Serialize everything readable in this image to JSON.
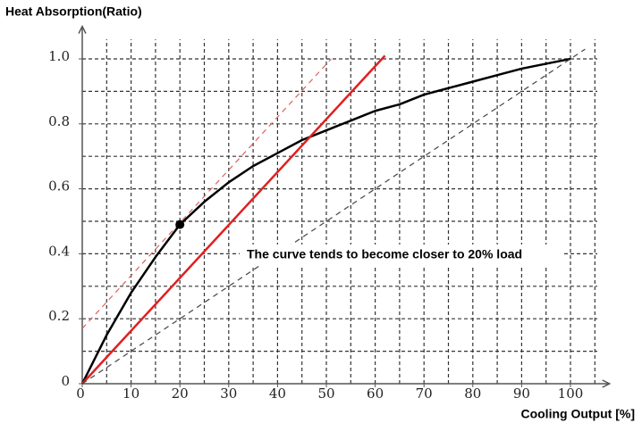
{
  "chart_data": {
    "type": "line",
    "y_label": "Heat Absorption(Ratio)",
    "x_label": "Cooling Output [%]",
    "annotation": "The curve tends to become closer to 20%  load",
    "xlim": [
      0,
      108
    ],
    "ylim": [
      0,
      1.1
    ],
    "xticks": [
      0,
      10,
      20,
      30,
      40,
      50,
      60,
      70,
      80,
      90,
      100
    ],
    "yticks": [
      0,
      0.2,
      0.4,
      0.6,
      0.8,
      {
        "value": 1,
        "label": "1.0"
      }
    ],
    "xgrid": [
      5,
      10,
      15,
      20,
      25,
      30,
      35,
      40,
      45,
      50,
      55,
      60,
      65,
      70,
      75,
      80,
      85,
      90,
      95,
      100,
      105
    ],
    "ygrid": [
      0.1,
      0.2,
      0.3,
      0.4,
      0.5,
      0.6,
      0.7,
      0.8,
      0.9,
      1.0
    ],
    "grid": true,
    "series": [
      {
        "color": "#000000",
        "dash": false,
        "width": 2.5,
        "x": [
          0,
          5,
          10,
          15,
          20,
          25,
          30,
          35,
          40,
          45,
          50,
          55,
          60,
          65,
          70,
          75,
          80,
          85,
          90,
          95,
          100
        ],
        "values": [
          0,
          0.15,
          0.28,
          0.39,
          0.49,
          0.56,
          0.62,
          0.67,
          0.71,
          0.75,
          0.78,
          0.81,
          0.84,
          0.86,
          0.89,
          0.91,
          0.93,
          0.95,
          0.97,
          0.985,
          1.0
        ]
      },
      {
        "color": "#e02020",
        "dash": false,
        "width": 2.5,
        "x": [
          0,
          62
        ],
        "values": [
          0,
          1.01
        ]
      },
      {
        "color": "#e06060",
        "dash": true,
        "width": 1.2,
        "x": [
          0,
          51
        ],
        "values": [
          0.17,
          1.0
        ]
      },
      {
        "color": "#444444",
        "dash": true,
        "width": 1.2,
        "x": [
          0,
          103
        ],
        "values": [
          0,
          1.03
        ]
      }
    ],
    "markers": [
      {
        "x": 20,
        "y": 0.49,
        "color": "#000000"
      }
    ]
  }
}
